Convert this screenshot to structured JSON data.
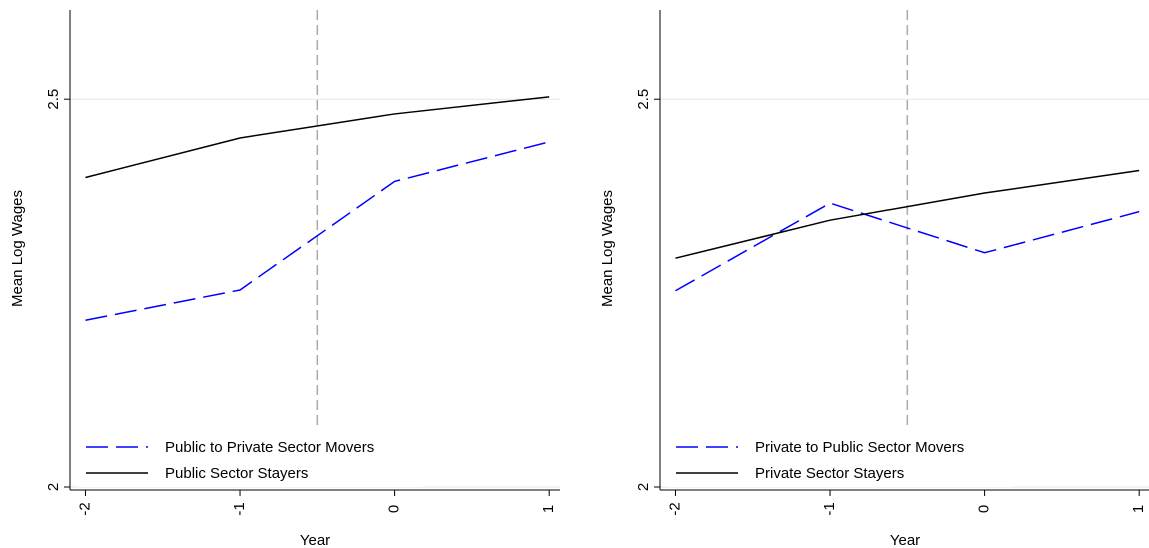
{
  "chart_data": [
    {
      "type": "line",
      "ylabel": "Mean Log Wages",
      "xlabel": "Year",
      "x": [
        -2,
        -1,
        0,
        1
      ],
      "xlim": [
        -2.1,
        1.07
      ],
      "xticks": [
        -2,
        -1,
        0,
        1
      ],
      "ylim": [
        2,
        2.615
      ],
      "yticks": [
        2,
        2.5
      ],
      "grid": true,
      "vline": -0.5,
      "legend": "lower left",
      "series": [
        {
          "name": "Public to Private Sector Movers",
          "color": "#0000ff",
          "dashed": true,
          "values": [
            2.215,
            2.254,
            2.394,
            2.445
          ]
        },
        {
          "name": "Public Sector Stayers",
          "color": "#000000",
          "dashed": false,
          "values": [
            2.399,
            2.45,
            2.481,
            2.503
          ]
        }
      ]
    },
    {
      "type": "line",
      "ylabel": "Mean Log Wages",
      "xlabel": "Year",
      "x": [
        -2,
        -1,
        0,
        1
      ],
      "xlim": [
        -2.1,
        1.07
      ],
      "xticks": [
        -2,
        -1,
        0,
        1
      ],
      "ylim": [
        2,
        2.615
      ],
      "yticks": [
        2,
        2.5
      ],
      "grid": true,
      "vline": -0.5,
      "legend": "lower left",
      "series": [
        {
          "name": "Private to Public Sector Movers",
          "color": "#0000ff",
          "dashed": true,
          "values": [
            2.253,
            2.366,
            2.302,
            2.355
          ]
        },
        {
          "name": "Private Sector Stayers",
          "color": "#000000",
          "dashed": false,
          "values": [
            2.295,
            2.344,
            2.379,
            2.408
          ]
        }
      ]
    }
  ]
}
